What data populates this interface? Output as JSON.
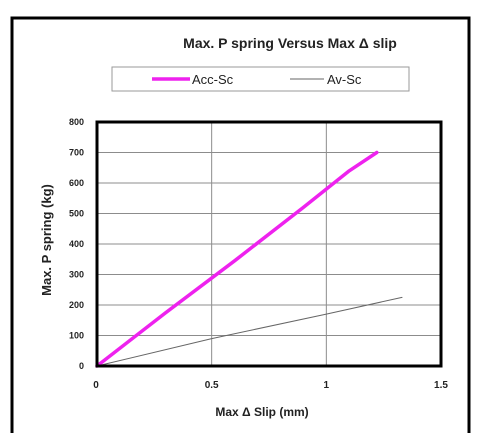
{
  "chart_data": {
    "type": "line",
    "title": "Max. P spring Versus Max Δ slip",
    "xlabel": "Max Δ Slip (mm)",
    "ylabel": "Max. P spring  (kg)",
    "xlim": [
      0,
      1.5
    ],
    "ylim": [
      0,
      800
    ],
    "x_ticks": [
      0,
      0.5,
      1,
      1.5
    ],
    "x_tick_labels": [
      "0",
      "0.5",
      "1",
      "1.5"
    ],
    "y_ticks": [
      0,
      100,
      200,
      300,
      400,
      500,
      600,
      700,
      800
    ],
    "y_tick_labels": [
      "0",
      "100",
      "200",
      "300",
      "400",
      "500",
      "600",
      "700",
      "800"
    ],
    "grid": true,
    "legend_position": "top",
    "series": [
      {
        "name": "Acc-Sc",
        "color": "#ee22ee",
        "stroke": "thick",
        "x": [
          0,
          0.3,
          0.6,
          0.9,
          1.1,
          1.22
        ],
        "y": [
          0,
          175,
          345,
          520,
          640,
          700
        ]
      },
      {
        "name": "Av-Sc",
        "color": "#666666",
        "stroke": "thin",
        "x": [
          0,
          0.5,
          1.0,
          1.33
        ],
        "y": [
          0,
          90,
          170,
          225
        ]
      }
    ]
  }
}
